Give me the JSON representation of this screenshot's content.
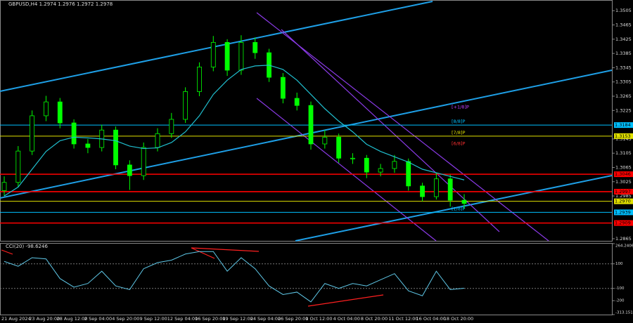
{
  "chart_data": [
    {
      "type": "candlestick",
      "title": "GBPUSD,H4  1.2974 1.2976 1.2972 1.2978",
      "time_labels": [
        "21 Aug 2024",
        "23 Aug 20:00",
        "28 Aug 12:00",
        "2 Sep 04:00",
        "4 Sep 20:00",
        "9 Sep 12:00",
        "12 Sep 04:00",
        "16 Sep 20:00",
        "19 Sep 12:00",
        "24 Sep 04:00",
        "26 Sep 20:00",
        "1 Oct 12:00",
        "4 Oct 04:00",
        "8 Oct 20:00",
        "11 Oct 12:00",
        "16 Oct 04:00",
        "18 Oct 20:00"
      ],
      "open": [
        1.3,
        1.3023,
        1.3111,
        1.321,
        1.3249,
        1.319,
        1.3131,
        1.3121,
        1.317,
        1.3072,
        1.3042,
        1.3121,
        1.316,
        1.32,
        1.3278,
        1.3347,
        1.3416,
        1.3338,
        1.3416,
        1.3387,
        1.3318,
        1.3259,
        1.3239,
        1.3131,
        1.315,
        1.3091,
        1.3091,
        1.3052,
        1.3062,
        1.3082,
        1.3013,
        1.2983,
        1.3033,
        1.2973
      ],
      "high": [
        1.304,
        1.3125,
        1.3225,
        1.3266,
        1.326,
        1.32,
        1.3145,
        1.3185,
        1.318,
        1.3085,
        1.3135,
        1.3175,
        1.3218,
        1.329,
        1.336,
        1.3434,
        1.3425,
        1.3436,
        1.343,
        1.3398,
        1.333,
        1.3275,
        1.325,
        1.317,
        1.316,
        1.3105,
        1.31,
        1.3075,
        1.31,
        1.309,
        1.3022,
        1.305,
        1.3045,
        1.299
      ],
      "low": [
        1.2985,
        1.301,
        1.31,
        1.3195,
        1.3175,
        1.3118,
        1.3105,
        1.311,
        1.306,
        1.3002,
        1.303,
        1.311,
        1.3148,
        1.319,
        1.3265,
        1.3335,
        1.3322,
        1.3325,
        1.337,
        1.3305,
        1.3245,
        1.3225,
        1.3115,
        1.3118,
        1.3078,
        1.3075,
        1.3035,
        1.304,
        1.305,
        1.3,
        1.297,
        1.2975,
        1.2955,
        1.295
      ],
      "close": [
        1.3023,
        1.3111,
        1.321,
        1.3249,
        1.319,
        1.3131,
        1.3121,
        1.317,
        1.3072,
        1.3042,
        1.3121,
        1.316,
        1.32,
        1.3278,
        1.3347,
        1.3416,
        1.3338,
        1.3416,
        1.3387,
        1.3318,
        1.3259,
        1.3239,
        1.3131,
        1.315,
        1.3091,
        1.3091,
        1.3052,
        1.3062,
        1.3082,
        1.3013,
        1.2983,
        1.3033,
        1.2973,
        1.2964
      ],
      "color": "#00ff00",
      "moving_average": {
        "color": "#20c0d0",
        "values": [
          1.2985,
          1.301,
          1.306,
          1.311,
          1.314,
          1.315,
          1.3148,
          1.3145,
          1.314,
          1.3125,
          1.3118,
          1.312,
          1.3135,
          1.3165,
          1.321,
          1.327,
          1.331,
          1.334,
          1.335,
          1.3352,
          1.334,
          1.331,
          1.327,
          1.323,
          1.3195,
          1.3165,
          1.313,
          1.311,
          1.3095,
          1.308,
          1.306,
          1.305,
          1.304,
          1.303
        ]
      },
      "ylim": [
        1.2859,
        1.3535
      ],
      "yticks": [
        1.3505,
        1.3465,
        1.3425,
        1.3385,
        1.3345,
        1.3305,
        1.3265,
        1.3225,
        1.3145,
        1.3105,
        1.3065,
        1.3025,
        1.2985,
        1.2865
      ],
      "levels": [
        {
          "value": 1.3184,
          "label": "1.3184",
          "color": "#00bfff"
        },
        {
          "value": 1.3153,
          "label": "1.3153",
          "color": "#e0e000"
        },
        {
          "value": 1.3046,
          "label": "1.3046",
          "color": "#ff0000"
        },
        {
          "value": 1.2997,
          "label": "1.2997",
          "color": "#ff0000"
        },
        {
          "value": 1.297,
          "label": "1.2970",
          "color": "#e0e000"
        },
        {
          "value": 1.2939,
          "label": "1.2939",
          "color": "#00bfff"
        },
        {
          "value": 1.2909,
          "label": "1.2909",
          "color": "#ff0000"
        }
      ],
      "murray_levels": [
        {
          "label": "[+1/8]P",
          "value": 1.3225,
          "color": "#c040ff"
        },
        {
          "label": "[8/8]P",
          "value": 1.3184,
          "color": "#00bfff"
        },
        {
          "label": "[7/8]P",
          "value": 1.3153,
          "color": "#e0e000"
        },
        {
          "label": "[6/8]P",
          "value": 1.3122,
          "color": "#ff3030"
        },
        {
          "label": "[1/8]P",
          "value": 1.2939,
          "color": "#00bfff"
        }
      ]
    },
    {
      "type": "line",
      "title": "CCI(20) -98.6246",
      "color": "#5fc8e8",
      "values": [
        120,
        80,
        150,
        140,
        -20,
        -90,
        -60,
        40,
        -80,
        -110,
        60,
        110,
        130,
        180,
        200,
        200,
        40,
        150,
        60,
        -80,
        -150,
        -130,
        -210,
        -60,
        -100,
        -60,
        -80,
        -30,
        20,
        -120,
        -160,
        40,
        -110,
        -98.6246
      ],
      "ylim": [
        -313.1514,
        264.2406
      ],
      "yticks": [
        264.2406,
        100,
        -100,
        -200,
        -313.1514
      ],
      "levels": [
        100,
        -100
      ]
    }
  ]
}
